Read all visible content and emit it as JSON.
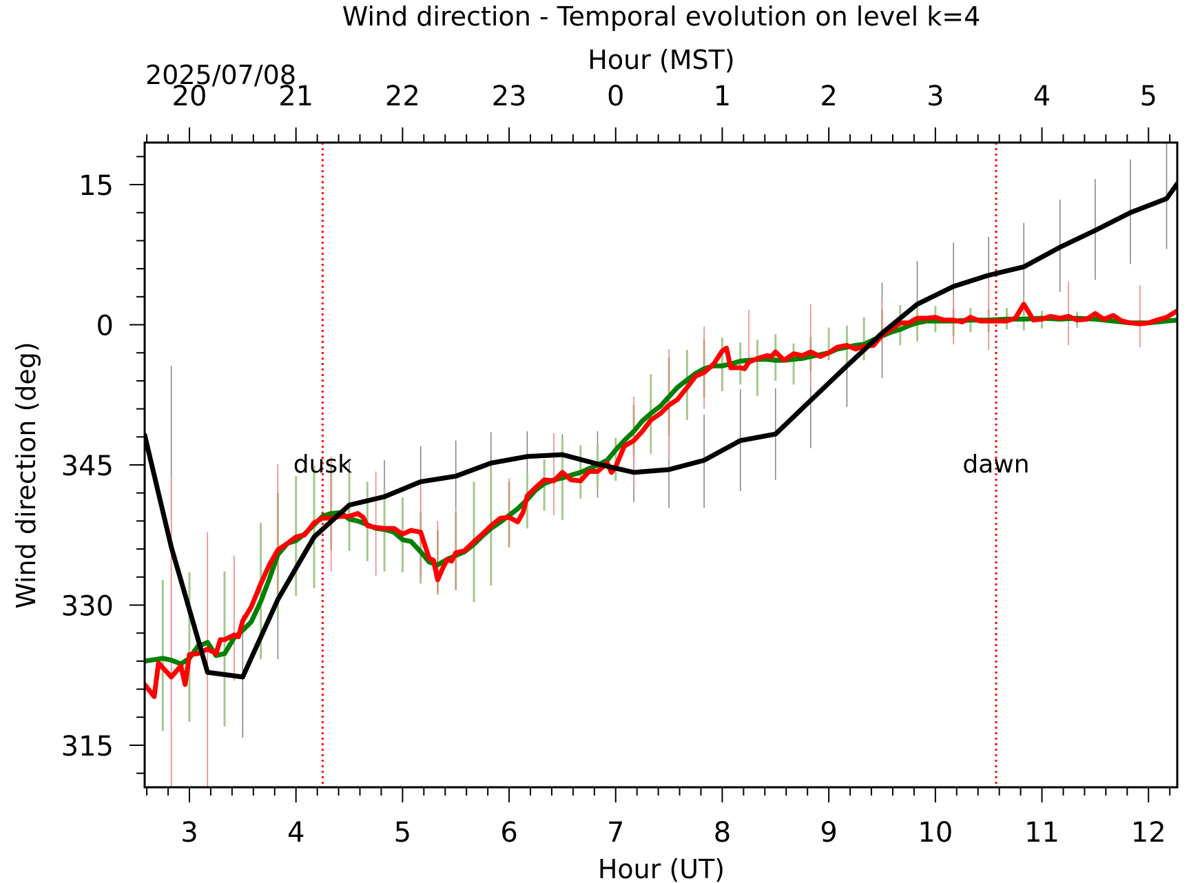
{
  "chart_data": {
    "type": "line",
    "title": "Wind direction - Temporal evolution on level k=4",
    "xlabel": "Hour (UT)",
    "x2label": "Hour (MST)",
    "date_label": "2025/07/08",
    "ylabel": "Wind direction (deg)",
    "xlim": [
      2.58,
      12.27
    ],
    "ylim": [
      310.5,
      19.5
    ],
    "y_wrap_note_degrees_mod_360": true,
    "x_ticks": [
      3,
      4,
      5,
      6,
      7,
      8,
      9,
      10,
      11,
      12
    ],
    "x_tick_labels": [
      "3",
      "4",
      "5",
      "6",
      "7",
      "8",
      "9",
      "10",
      "11",
      "12"
    ],
    "x2_ticks": [
      3,
      4,
      5,
      6,
      7,
      8,
      9,
      10,
      11,
      12
    ],
    "x2_tick_labels": [
      "20",
      "21",
      "22",
      "23",
      "0",
      "1",
      "2",
      "3",
      "4",
      "5"
    ],
    "y_ticks": [
      315,
      330,
      345,
      0,
      15
    ],
    "y_tick_labels": [
      "315",
      "330",
      "345",
      "0",
      "15"
    ],
    "grid": false,
    "annotations": [
      {
        "text": "dusk",
        "x": 4.25,
        "color": "#ff0000"
      },
      {
        "text": "dawn",
        "x": 10.57,
        "color": "#ff0000"
      }
    ],
    "series": [
      {
        "color": "#000000",
        "errorbar_color": "#808080",
        "x": [
          2.58,
          2.83,
          3.17,
          3.5,
          3.83,
          4.17,
          4.5,
          4.83,
          5.17,
          5.5,
          5.83,
          6.17,
          6.5,
          6.83,
          7.17,
          7.5,
          7.83,
          8.17,
          8.5,
          8.83,
          9.17,
          9.5,
          9.83,
          10.17,
          10.5,
          10.83,
          11.17,
          11.5,
          11.83,
          12.17,
          12.27
        ],
        "y": [
          348.2,
          336.2,
          322.8,
          322.3,
          330.6,
          337.3,
          340.7,
          341.6,
          343.2,
          343.8,
          345.2,
          345.9,
          346.1,
          345.1,
          344.2,
          344.5,
          345.5,
          347.6,
          348.3,
          351.9,
          355.6,
          359.1,
          362.2,
          364.1,
          365.3,
          366.2,
          368.3,
          370.1,
          372.0,
          373.5,
          375.1
        ],
        "err_low": [
          null,
          318.5,
          310.5,
          315.8,
          324.2,
          331.8,
          335.9,
          337.9,
          339.1,
          340.1,
          341.9,
          343.2,
          343.6,
          341.5,
          341.0,
          340.4,
          340.4,
          342.2,
          343.4,
          346.8,
          351.2,
          354.3,
          358.2,
          360.1,
          361.3,
          361.5,
          363.5,
          364.8,
          366.5,
          368.1,
          null
        ],
        "err_high": [
          null,
          355.6,
          337.0,
          328.9,
          337.0,
          342.7,
          345.3,
          345.5,
          347.0,
          347.6,
          348.5,
          348.6,
          348.3,
          348.6,
          347.6,
          348.6,
          350.4,
          353.1,
          353.2,
          357.1,
          359.9,
          364.5,
          366.8,
          368.8,
          369.4,
          370.9,
          373.4,
          375.6,
          377.7,
          379.6,
          null
        ]
      },
      {
        "color": "#008000",
        "errorbar_color": "#a3c98e",
        "x": [
          2.58,
          2.75,
          2.83,
          2.92,
          3.0,
          3.08,
          3.17,
          3.25,
          3.33,
          3.42,
          3.5,
          3.58,
          3.67,
          3.75,
          3.83,
          3.92,
          4.0,
          4.08,
          4.17,
          4.25,
          4.33,
          4.42,
          4.5,
          4.58,
          4.67,
          4.75,
          4.83,
          4.92,
          5.0,
          5.08,
          5.17,
          5.25,
          5.33,
          5.42,
          5.5,
          5.58,
          5.67,
          5.75,
          5.83,
          5.92,
          6.0,
          6.08,
          6.17,
          6.25,
          6.33,
          6.42,
          6.5,
          6.58,
          6.67,
          6.75,
          6.83,
          6.92,
          7.0,
          7.08,
          7.17,
          7.25,
          7.33,
          7.42,
          7.5,
          7.58,
          7.67,
          7.75,
          7.83,
          7.92,
          8.0,
          8.08,
          8.17,
          8.25,
          8.33,
          8.42,
          8.5,
          8.58,
          8.67,
          8.75,
          8.83,
          8.92,
          9.0,
          9.08,
          9.17,
          9.25,
          9.33,
          9.42,
          9.5,
          9.58,
          9.67,
          9.75,
          9.83,
          9.92,
          10.0,
          10.17,
          10.33,
          10.5,
          10.67,
          10.83,
          11.0,
          11.17,
          11.33,
          11.5,
          11.67,
          11.83,
          12.0,
          12.17,
          12.27
        ],
        "y": [
          324.0,
          324.3,
          324.1,
          323.7,
          324.3,
          325.6,
          326.0,
          324.6,
          324.8,
          326.5,
          327.3,
          328.2,
          330.4,
          332.8,
          335.4,
          336.6,
          336.9,
          337.6,
          338.6,
          339.5,
          339.8,
          339.9,
          339.2,
          339.0,
          338.6,
          338.2,
          338.1,
          337.8,
          337.0,
          336.8,
          335.7,
          334.6,
          334.3,
          334.9,
          335.3,
          335.7,
          336.5,
          337.4,
          338.2,
          338.9,
          339.6,
          340.3,
          341.3,
          342.3,
          343.0,
          343.4,
          343.6,
          343.9,
          344.2,
          344.6,
          345.0,
          345.5,
          346.6,
          347.6,
          348.6,
          349.7,
          350.5,
          351.3,
          352.3,
          353.3,
          354.1,
          354.8,
          355.3,
          355.6,
          355.6,
          355.8,
          356.1,
          356.2,
          356.3,
          356.3,
          356.2,
          356.2,
          356.3,
          356.4,
          356.6,
          356.8,
          357.0,
          357.4,
          357.6,
          357.8,
          357.9,
          358.4,
          358.8,
          359.2,
          359.5,
          359.9,
          360.2,
          360.4,
          360.4,
          360.4,
          360.5,
          360.5,
          360.6,
          360.6,
          360.7,
          360.6,
          360.7,
          360.6,
          360.4,
          360.2,
          360.2,
          360.4,
          360.5
        ],
        "err_low": [
          null,
          316.5,
          null,
          null,
          317.5,
          null,
          null,
          null,
          317.0,
          null,
          null,
          null,
          324.2,
          null,
          328.9,
          null,
          331.0,
          null,
          332.0,
          null,
          335.9,
          null,
          335.8,
          null,
          334.7,
          null,
          333.6,
          null,
          333.5,
          null,
          332.3,
          null,
          331.1,
          null,
          331.6,
          null,
          330.3,
          null,
          332.1,
          null,
          336.2,
          null,
          338.2,
          null,
          340.1,
          null,
          339.1,
          null,
          341.4,
          null,
          342.6,
          null,
          343.3,
          null,
          345.9,
          null,
          346.2,
          null,
          348.1,
          null,
          349.8,
          null,
          352.2,
          null,
          352.9,
          null,
          353.6,
          null,
          352.4,
          null,
          354.0,
          null,
          353.6,
          null,
          355.1,
          null,
          356.2,
          null,
          356.0,
          null,
          356.2,
          null,
          358.1,
          null,
          357.8,
          null,
          358.4,
          null,
          359.2,
          358.8,
          359.2,
          359.2,
          359.5,
          359.4,
          359.6,
          359.3,
          359.7,
          null,
          359.0,
          359.1,
          null
        ],
        "err_high": [
          null,
          332.7,
          null,
          null,
          333.5,
          null,
          null,
          null,
          333.6,
          null,
          null,
          null,
          338.8,
          null,
          342.0,
          null,
          343.8,
          null,
          344.9,
          null,
          345.1,
          null,
          344.3,
          null,
          343.2,
          null,
          342.6,
          null,
          341.5,
          null,
          340.0,
          null,
          338.0,
          null,
          340.0,
          null,
          343.2,
          null,
          344.6,
          null,
          343.2,
          null,
          344.1,
          null,
          345.6,
          null,
          348.0,
          null,
          347.1,
          null,
          347.3,
          null,
          347.9,
          null,
          351.4,
          null,
          354.7,
          null,
          356.5,
          null,
          357.3,
          null,
          358.4,
          null,
          358.6,
          null,
          358.1,
          null,
          358.4,
          null,
          359.0,
          null,
          358.0,
          null,
          358.7,
          null,
          359.7,
          null,
          359.4,
          null,
          360.8,
          null,
          361.6,
          null,
          362.1,
          null,
          362.0,
          361.4,
          362.0,
          361.7,
          361.8,
          361.7,
          361.8,
          361.8,
          361.5,
          null,
          361.4,
          361.6,
          null
        ]
      },
      {
        "color": "#ff0000",
        "errorbar_color": "#f08080",
        "x": [
          2.58,
          2.67,
          2.71,
          2.83,
          2.92,
          2.96,
          3.0,
          3.08,
          3.17,
          3.25,
          3.29,
          3.33,
          3.42,
          3.46,
          3.5,
          3.58,
          3.67,
          3.75,
          3.83,
          3.92,
          4.0,
          4.08,
          4.17,
          4.25,
          4.33,
          4.42,
          4.5,
          4.58,
          4.63,
          4.67,
          4.75,
          4.83,
          4.92,
          5.0,
          5.08,
          5.17,
          5.25,
          5.29,
          5.33,
          5.38,
          5.42,
          5.46,
          5.5,
          5.58,
          5.67,
          5.75,
          5.83,
          5.92,
          6.0,
          6.08,
          6.13,
          6.17,
          6.25,
          6.33,
          6.42,
          6.5,
          6.58,
          6.67,
          6.75,
          6.83,
          6.92,
          6.96,
          7.0,
          7.08,
          7.17,
          7.25,
          7.33,
          7.42,
          7.5,
          7.58,
          7.67,
          7.75,
          7.83,
          7.92,
          8.0,
          8.04,
          8.08,
          8.17,
          8.21,
          8.25,
          8.33,
          8.42,
          8.46,
          8.5,
          8.58,
          8.67,
          8.75,
          8.83,
          8.92,
          9.0,
          9.08,
          9.17,
          9.25,
          9.33,
          9.42,
          9.5,
          9.58,
          9.67,
          9.75,
          9.83,
          9.92,
          10.0,
          10.08,
          10.17,
          10.25,
          10.33,
          10.42,
          10.5,
          10.58,
          10.67,
          10.75,
          10.83,
          10.92,
          11.0,
          11.08,
          11.17,
          11.25,
          11.33,
          11.42,
          11.5,
          11.58,
          11.67,
          11.75,
          11.83,
          11.92,
          12.0,
          12.08,
          12.17,
          12.27
        ],
        "y": [
          321.5,
          320.2,
          323.8,
          322.3,
          323.5,
          321.5,
          324.7,
          324.8,
          325.3,
          324.8,
          326.3,
          326.3,
          326.8,
          326.6,
          328.3,
          329.8,
          332.3,
          334.3,
          335.9,
          336.6,
          337.3,
          337.5,
          338.8,
          339.3,
          339.3,
          339.5,
          339.5,
          339.8,
          339.4,
          338.5,
          338.3,
          338.2,
          338.2,
          337.6,
          338.0,
          337.8,
          335.0,
          334.8,
          332.7,
          334.0,
          334.9,
          334.7,
          335.6,
          335.8,
          336.8,
          337.6,
          338.5,
          339.3,
          339.4,
          338.9,
          339.9,
          341.7,
          342.6,
          343.4,
          343.3,
          344.2,
          343.4,
          343.3,
          344.3,
          344.3,
          345.2,
          344.2,
          344.8,
          347.0,
          347.6,
          348.6,
          349.8,
          350.5,
          351.4,
          352.0,
          353.3,
          354.5,
          354.9,
          355.8,
          357.2,
          357.5,
          355.4,
          355.4,
          355.3,
          356.0,
          356.4,
          356.7,
          356.6,
          357.1,
          356.2,
          356.9,
          356.7,
          357.1,
          356.6,
          357.0,
          357.6,
          357.8,
          357.4,
          357.7,
          357.8,
          358.9,
          359.5,
          360.2,
          360.2,
          360.7,
          360.7,
          360.8,
          360.5,
          360.5,
          360.3,
          360.8,
          360.4,
          360.4,
          360.4,
          360.4,
          360.7,
          362.2,
          360.5,
          360.6,
          360.9,
          360.7,
          360.9,
          360.5,
          360.6,
          361.2,
          360.6,
          361.0,
          360.4,
          360.2,
          360.1,
          360.2,
          360.5,
          360.8,
          361.5
        ],
        "err_low": [
          null,
          null,
          null,
          310.5,
          null,
          null,
          null,
          null,
          310.5,
          null,
          null,
          null,
          321.9,
          null,
          null,
          null,
          null,
          null,
          330.0,
          null,
          null,
          null,
          null,
          null,
          333.6,
          null,
          null,
          null,
          null,
          null,
          333.1,
          null,
          null,
          null,
          null,
          333.1,
          null,
          null,
          331.4,
          null,
          null,
          null,
          331.6,
          null,
          null,
          null,
          null,
          null,
          336.2,
          null,
          null,
          null,
          null,
          null,
          339.6,
          null,
          null,
          null,
          null,
          null,
          null,
          null,
          null,
          null,
          342.7,
          null,
          null,
          null,
          345.6,
          null,
          null,
          null,
          351.0,
          null,
          null,
          null,
          null,
          null,
          null,
          355.6,
          null,
          null,
          null,
          null,
          null,
          null,
          null,
          353.2,
          null,
          null,
          null,
          null,
          null,
          null,
          null,
          357.9,
          null,
          null,
          null,
          null,
          null,
          null,
          null,
          357.9,
          null,
          null,
          null,
          357.3,
          null,
          null,
          null,
          null,
          null,
          null,
          null,
          null,
          357.8,
          null,
          null,
          null,
          null,
          null,
          null,
          null,
          357.6,
          null,
          null
        ],
        "err_high": [
          null,
          null,
          null,
          343.8,
          null,
          null,
          null,
          null,
          337.8,
          null,
          null,
          null,
          335.3,
          null,
          null,
          null,
          null,
          null,
          345.1,
          null,
          null,
          null,
          null,
          null,
          345.9,
          null,
          null,
          null,
          null,
          null,
          344.3,
          null,
          null,
          null,
          null,
          343.1,
          null,
          null,
          339.0,
          null,
          null,
          null,
          340.5,
          null,
          null,
          null,
          null,
          null,
          343.6,
          null,
          null,
          null,
          null,
          null,
          348.4,
          null,
          null,
          null,
          null,
          null,
          null,
          null,
          null,
          null,
          352.3,
          null,
          null,
          null,
          357.4,
          null,
          null,
          null,
          359.8,
          null,
          null,
          null,
          null,
          null,
          null,
          361.6,
          null,
          null,
          null,
          null,
          null,
          null,
          null,
          362.2,
          null,
          null,
          null,
          null,
          null,
          null,
          null,
          362.7,
          null,
          null,
          null,
          null,
          null,
          null,
          null,
          363.2,
          null,
          null,
          null,
          365.0,
          null,
          null,
          null,
          null,
          null,
          null,
          null,
          null,
          364.6,
          null,
          null,
          null,
          null,
          null,
          null,
          null,
          364.2,
          null,
          null
        ]
      }
    ]
  }
}
